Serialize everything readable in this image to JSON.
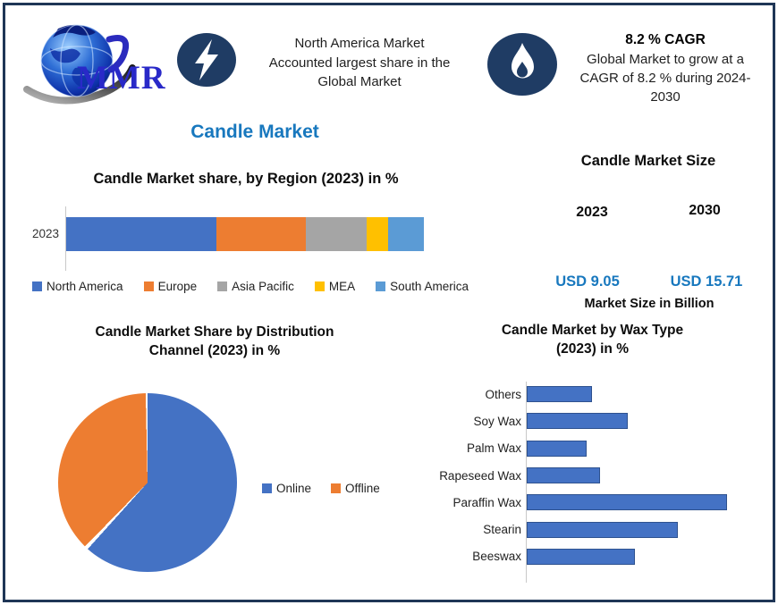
{
  "header": {
    "logo_text": "MMR",
    "na_lines": [
      "North America Market",
      "Accounted largest share in the",
      "Global Market"
    ],
    "cagr_title": "8.2 % CAGR",
    "cagr_lines": [
      "Global Market to grow at a",
      "CAGR of 8.2 % during 2024-",
      "2030"
    ]
  },
  "main_title": "Candle Market",
  "market_size": {
    "title": "Candle Market Size",
    "year_left": "2023",
    "year_right": "2030",
    "value_left": "USD 9.05",
    "value_right": "USD 15.71",
    "footnote": "Market Size in Billion"
  },
  "colors": {
    "accent_blue": "#1878BE",
    "icon_navy": "#1F3C64",
    "frame_border": "#1F3656",
    "logo_blue": "#2929C8",
    "excel_blue": "#4472C4",
    "excel_orange": "#ED7D31",
    "excel_gray": "#A5A5A5",
    "excel_yellow": "#FFC000",
    "excel_lightblue": "#5B9BD5",
    "wax_bar_border": "#2F528F"
  },
  "chart_data": [
    {
      "type": "bar",
      "subtype": "stacked-horizontal",
      "title": "Candle Market share, by Region (2023) in %",
      "categories": [
        "2023"
      ],
      "series": [
        {
          "name": "North America",
          "values": [
            42
          ],
          "color": "#4472C4"
        },
        {
          "name": "Europe",
          "values": [
            25
          ],
          "color": "#ED7D31"
        },
        {
          "name": "Asia Pacific",
          "values": [
            17
          ],
          "color": "#A5A5A5"
        },
        {
          "name": "MEA",
          "values": [
            6
          ],
          "color": "#FFC000"
        },
        {
          "name": "South America",
          "values": [
            10
          ],
          "color": "#5B9BD5"
        }
      ],
      "xlim": [
        0,
        100
      ],
      "grid": false,
      "legend_position": "bottom"
    },
    {
      "type": "pie",
      "title": "Candle Market Share by Distribution Channel (2023) in %",
      "title_lines": [
        "Candle Market Share by Distribution",
        "Channel (2023) in %"
      ],
      "labels": [
        "Online",
        "Offline"
      ],
      "values": [
        62,
        38
      ],
      "colors": [
        "#4472C4",
        "#ED7D31"
      ],
      "start_angle_deg": 0,
      "direction": "clockwise",
      "legend_position": "right"
    },
    {
      "type": "bar",
      "subtype": "horizontal",
      "title": "Candle Market by Wax Type (2023) in %",
      "title_lines": [
        "Candle Market by Wax Type",
        "(2023) in %"
      ],
      "categories": [
        "Others",
        "Soy Wax",
        "Palm Wax",
        "Rapeseed Wax",
        "Paraffin Wax",
        "Stearin",
        "Beeswax"
      ],
      "values": [
        8.5,
        13.3,
        7.8,
        9.6,
        26.6,
        20.0,
        14.3
      ],
      "bar_color": "#4472C4",
      "bar_border_color": "#2F528F",
      "grid": false,
      "legend_position": "none"
    }
  ]
}
